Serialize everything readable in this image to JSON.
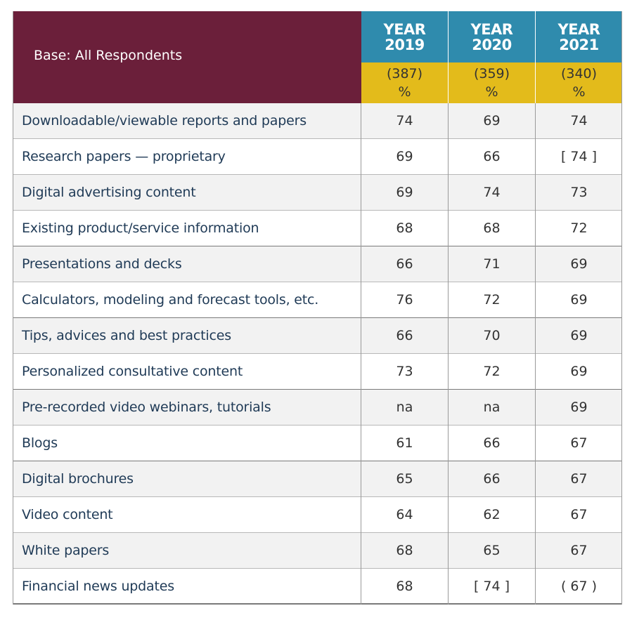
{
  "header": {
    "base_label": "Base: All Respondents",
    "years": [
      {
        "line1": "YEAR",
        "line2": "2019",
        "base": "(387)",
        "unit": "%"
      },
      {
        "line1": "YEAR",
        "line2": "2020",
        "base": "(359)",
        "unit": "%"
      },
      {
        "line1": "YEAR",
        "line2": "2021",
        "base": "(340)",
        "unit": "%"
      }
    ]
  },
  "colors": {
    "header_base_bg": "#6b1f3a",
    "header_year_bg": "#2f8bad",
    "header_n_bg": "#e3bb1b",
    "row_alt_bg": "#f2f2f2",
    "label_text": "#1f3a56"
  },
  "chart_data": {
    "type": "table",
    "title": "",
    "columns": [
      "YEAR 2019",
      "YEAR 2020",
      "YEAR 2021"
    ],
    "bases": [
      "(387)",
      "(359)",
      "(340)"
    ],
    "rows": [
      {
        "label": "Downloadable/viewable reports and papers",
        "values": [
          "74",
          "69",
          "74"
        ]
      },
      {
        "label": "Research papers — proprietary",
        "values": [
          "69",
          "66",
          "[ 74 ]"
        ]
      },
      {
        "label": "Digital advertising content",
        "values": [
          "69",
          "74",
          "73"
        ]
      },
      {
        "label": "Existing product/service information",
        "values": [
          "68",
          "68",
          "72"
        ]
      },
      {
        "label": "Presentations and decks",
        "values": [
          "66",
          "71",
          "69"
        ]
      },
      {
        "label": "Calculators, modeling and forecast tools, etc.",
        "values": [
          "76",
          "72",
          "69"
        ]
      },
      {
        "label": "Tips, advices and best practices",
        "values": [
          "66",
          "70",
          "69"
        ]
      },
      {
        "label": "Personalized consultative content",
        "values": [
          "73",
          "72",
          "69"
        ]
      },
      {
        "label": "Pre-recorded video webinars, tutorials",
        "values": [
          "na",
          "na",
          "69"
        ]
      },
      {
        "label": "Blogs",
        "values": [
          "61",
          "66",
          "67"
        ]
      },
      {
        "label": "Digital brochures",
        "values": [
          "65",
          "66",
          "67"
        ]
      },
      {
        "label": "Video content",
        "values": [
          "64",
          "62",
          "67"
        ]
      },
      {
        "label": "White papers",
        "values": [
          "68",
          "65",
          "67"
        ]
      },
      {
        "label": "Financial news updates",
        "values": [
          "68",
          "[ 74 ]",
          "( 67 )"
        ]
      }
    ]
  }
}
